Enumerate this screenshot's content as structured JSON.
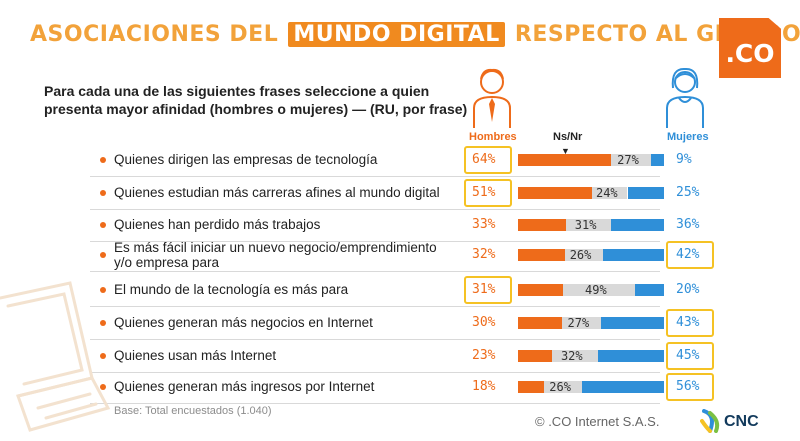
{
  "title": {
    "part1": "ASOCIACIONES DEL",
    "highlight": "MUNDO DIGITAL",
    "part2": "RESPECTO AL GÉNERO"
  },
  "logo_text": ".CO",
  "subtitle": "Para cada una de las siguientes frases seleccione a quien presenta mayor afinidad (hombres o mujeres) — (RU, por frase)",
  "columns": {
    "men": "Hombres",
    "nsnr": "Ns/Nr",
    "women": "Mujeres"
  },
  "base_note": "Base: Total encuestados (1.040)",
  "footer": {
    "copyright": "© .CO Internet S.A.S.",
    "brand": "CNC"
  },
  "colors": {
    "men": "#ee6b1a",
    "nsnr": "#d9d9d9",
    "women": "#2f8fd8",
    "highlight_box": "#f5c224",
    "title": "#f2a23a"
  },
  "chart_data": {
    "type": "bar",
    "stacked": true,
    "orientation": "horizontal",
    "categories": [
      "Quienes dirigen las empresas de tecnología",
      "Quienes estudian más carreras afines al mundo digital",
      "Quienes han perdido más trabajos",
      "Es más fácil iniciar un nuevo negocio/emprendimiento y/o empresa para",
      "El mundo de la tecnología es más para",
      "Quienes generan más negocios en Internet",
      "Quienes usan más Internet",
      "Quienes generan más ingresos por Internet"
    ],
    "series": [
      {
        "name": "Hombres",
        "values": [
          64,
          51,
          33,
          32,
          31,
          30,
          23,
          18
        ]
      },
      {
        "name": "Ns/Nr",
        "values": [
          27,
          24,
          31,
          26,
          49,
          27,
          32,
          26
        ]
      },
      {
        "name": "Mujeres",
        "values": [
          9,
          25,
          36,
          42,
          20,
          43,
          45,
          56
        ]
      }
    ],
    "labels": {
      "men": [
        "64%",
        "51%",
        "33%",
        "32%",
        "31%",
        "30%",
        "23%",
        "18%"
      ],
      "nsnr": [
        "27%",
        "24%",
        "31%",
        "26%",
        "49%",
        "27%",
        "32%",
        "26%"
      ],
      "women": [
        "9%",
        "25%",
        "36%",
        "42%",
        "20%",
        "43%",
        "45%",
        "56%"
      ]
    },
    "highlight_men": [
      0,
      1,
      4
    ],
    "highlight_women": [
      3,
      5,
      6,
      7
    ]
  }
}
